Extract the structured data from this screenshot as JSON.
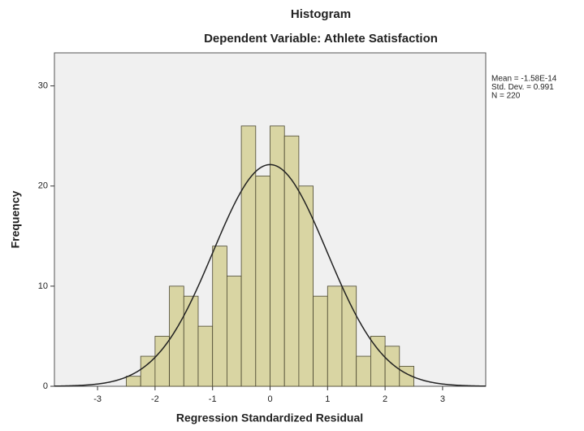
{
  "chart_data": {
    "type": "histogram",
    "title": "Histogram",
    "subtitle": "Dependent Variable: Athlete Satisfaction",
    "x_label": "Regression Standardized Residual",
    "y_label": "Frequency",
    "bins": [
      -2.5,
      -2.25,
      -2.0,
      -1.75,
      -1.5,
      -1.25,
      -1.0,
      -0.75,
      -0.5,
      -0.25,
      0,
      0.25,
      0.5,
      0.75,
      1.0,
      1.25,
      1.5,
      1.75,
      2.0,
      2.25,
      2.5
    ],
    "values": [
      1,
      3,
      5,
      10,
      9,
      6,
      14,
      11,
      26,
      21,
      26,
      25,
      20,
      9,
      10,
      10,
      3,
      5,
      4,
      2
    ],
    "color": "#d9d5a3",
    "xlim": [
      -3.75,
      3.75
    ],
    "xticks": [
      -3,
      -2,
      -1,
      0,
      1,
      2,
      3
    ],
    "ylim": [
      0,
      33.3
    ],
    "yticks": [
      0,
      10,
      20,
      30
    ],
    "stats": [
      {
        "value": -1.58e-14,
        "label": "Mean = -1.58E-14"
      },
      {
        "value": 0.991,
        "label": "Std. Dev. = 0.991"
      },
      {
        "value": 220,
        "label": "N = 220"
      }
    ],
    "normal_curve": true
  }
}
